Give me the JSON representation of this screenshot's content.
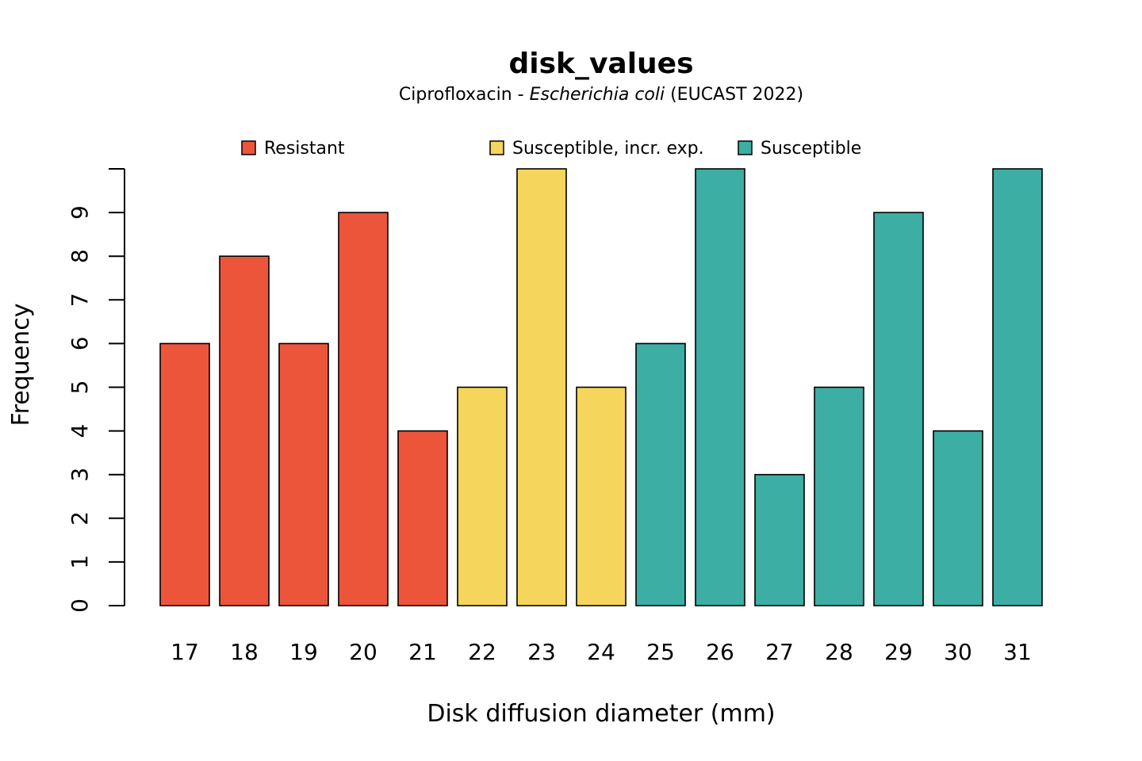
{
  "chart_data": {
    "type": "bar",
    "title": "disk_values",
    "subtitle": {
      "prefix": "Ciprofloxacin - ",
      "organism": "Escherichia coli",
      "suffix": " (EUCAST 2022)"
    },
    "xlabel": "Disk diffusion diameter (mm)",
    "ylabel": "Frequency",
    "ylim": [
      0,
      10
    ],
    "yticks": [
      0,
      1,
      2,
      3,
      4,
      5,
      6,
      7,
      8,
      9
    ],
    "categories": [
      "17",
      "18",
      "19",
      "20",
      "21",
      "22",
      "23",
      "24",
      "25",
      "26",
      "27",
      "28",
      "29",
      "30",
      "31"
    ],
    "values": [
      6,
      8,
      6,
      9,
      4,
      5,
      10,
      5,
      6,
      10,
      3,
      5,
      9,
      4,
      10
    ],
    "interpretation": [
      "R",
      "R",
      "R",
      "R",
      "R",
      "I",
      "I",
      "I",
      "S",
      "S",
      "S",
      "S",
      "S",
      "S",
      "S"
    ],
    "legend": {
      "placement": "top",
      "entries": [
        {
          "key": "R",
          "label": "Resistant",
          "color": "#ED553B"
        },
        {
          "key": "I",
          "label": "Susceptible, incr. exp.",
          "color": "#F6D55C"
        },
        {
          "key": "S",
          "label": "Susceptible",
          "color": "#3CAEA3"
        }
      ]
    },
    "grid": false
  }
}
